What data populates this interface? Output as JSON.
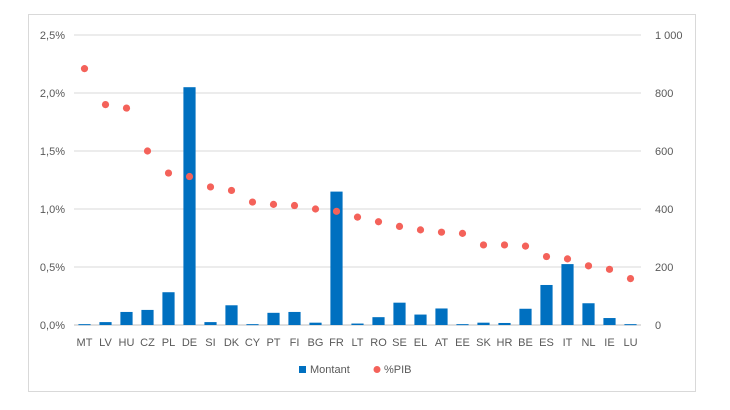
{
  "chart_data": {
    "type": "bar",
    "title": "",
    "xlabel": "",
    "ylabel": "",
    "categories": [
      "MT",
      "LV",
      "HU",
      "CZ",
      "PL",
      "DE",
      "SI",
      "DK",
      "CY",
      "PT",
      "FI",
      "BG",
      "FR",
      "LT",
      "RO",
      "SE",
      "EL",
      "AT",
      "EE",
      "SK",
      "HR",
      "BE",
      "ES",
      "IT",
      "NL",
      "IE",
      "LU"
    ],
    "series": [
      {
        "name": "Montant",
        "type": "bar",
        "axis": "right",
        "color": "#0070C0",
        "values": [
          3,
          10,
          45,
          52,
          113,
          820,
          10,
          68,
          3,
          42,
          45,
          8,
          460,
          5,
          27,
          77,
          36,
          57,
          3,
          8,
          7,
          56,
          138,
          210,
          75,
          24,
          3
        ]
      },
      {
        "name": "%PIB",
        "type": "scatter",
        "axis": "left",
        "color": "#F4625A",
        "values": [
          2.21,
          1.9,
          1.87,
          1.5,
          1.31,
          1.28,
          1.19,
          1.16,
          1.06,
          1.04,
          1.03,
          1.0,
          0.98,
          0.93,
          0.89,
          0.85,
          0.82,
          0.8,
          0.79,
          0.69,
          0.69,
          0.68,
          0.59,
          0.57,
          0.51,
          0.48,
          0.4
        ]
      }
    ],
    "y_left": {
      "ylim": [
        0,
        2.5
      ],
      "ticks": [
        0,
        0.5,
        1.0,
        1.5,
        2.0,
        2.5
      ],
      "tick_labels": [
        "0,0%",
        "0,5%",
        "1,0%",
        "1,5%",
        "2,0%",
        "2,5%"
      ]
    },
    "y_right": {
      "ylim": [
        0,
        1000
      ],
      "ticks": [
        0,
        200,
        400,
        600,
        800,
        1000
      ],
      "tick_labels": [
        "0",
        "200",
        "400",
        "600",
        "800",
        "1 000"
      ]
    },
    "grid": true,
    "legend": {
      "position": "bottom",
      "entries": [
        {
          "label": "Montant",
          "marker": "square",
          "color": "#0070C0"
        },
        {
          "label": "%PIB",
          "marker": "circle",
          "color": "#F4625A"
        }
      ]
    }
  }
}
